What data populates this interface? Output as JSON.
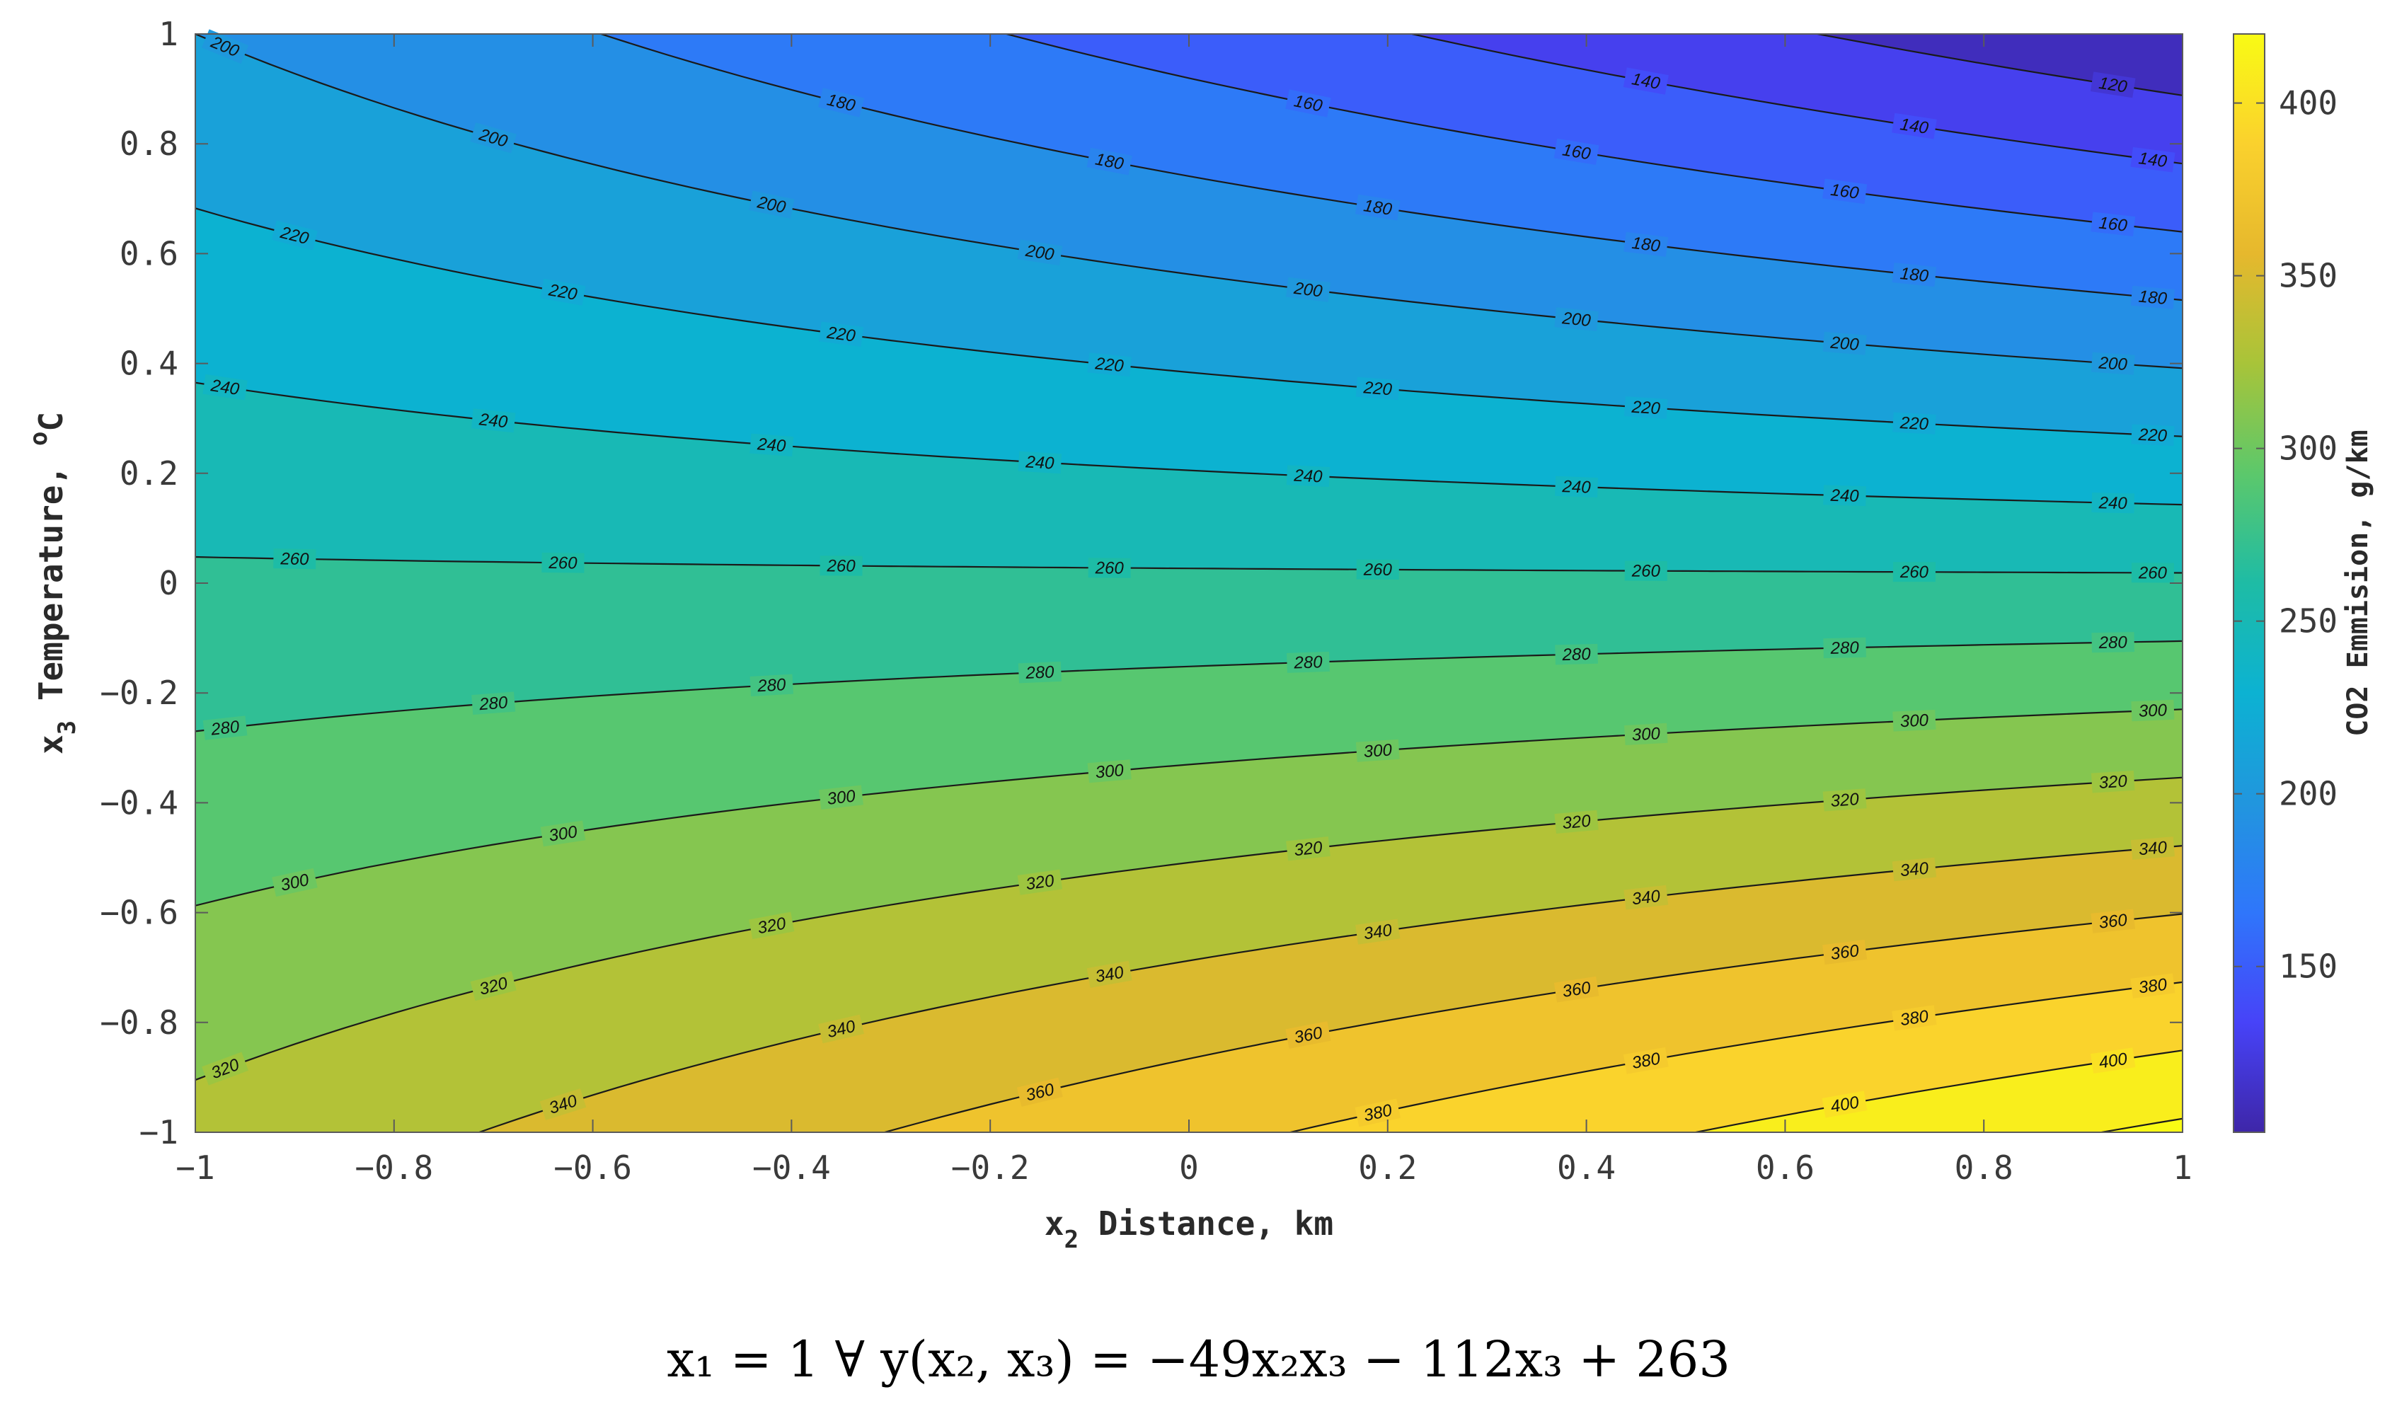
{
  "chart_data": {
    "type": "contour",
    "function": {
      "a": -49,
      "b": -112,
      "c": 263
    },
    "xlim": [
      -1,
      1
    ],
    "ylim": [
      -1,
      1
    ],
    "xticks": [
      "−1",
      "−0.8",
      "−0.6",
      "−0.4",
      "−0.2",
      "0",
      "0.2",
      "0.4",
      "0.6",
      "0.8",
      "1"
    ],
    "yticks": [
      "−1",
      "−0.8",
      "−0.6",
      "−0.4",
      "−0.2",
      "0",
      "0.2",
      "0.4",
      "0.6",
      "0.8",
      "1"
    ],
    "xlabel": {
      "main": "x",
      "sub": "2",
      "rest": " Distance, km"
    },
    "ylabel": {
      "main": "x",
      "sub": "3",
      "rest": " Temperature, ",
      "sup": "o",
      "unit": "C"
    },
    "contour_levels": [
      120,
      140,
      160,
      180,
      200,
      220,
      240,
      260,
      280,
      300,
      320,
      340,
      360,
      380,
      400,
      420
    ],
    "colorbar": {
      "label": "CO2 Emmision, g/km",
      "range": [
        102,
        420
      ],
      "ticks": [
        "150",
        "200",
        "250",
        "300",
        "350",
        "400"
      ],
      "colormap": "parula"
    },
    "colors": {
      "parula": [
        "#3e26a8",
        "#4743f8",
        "#2f76fb",
        "#2196de",
        "#0cb2d2",
        "#1ebca5",
        "#5cc86b",
        "#a8c439",
        "#e6b82d",
        "#fad12d",
        "#f9fb14"
      ],
      "axis": "#5a5a5a",
      "contour_line": "#1a1a1a"
    }
  },
  "formula": "x₁ = 1 ∀ y(x₂, x₃) =  −49x₂x₃ − 112x₃ + 263"
}
